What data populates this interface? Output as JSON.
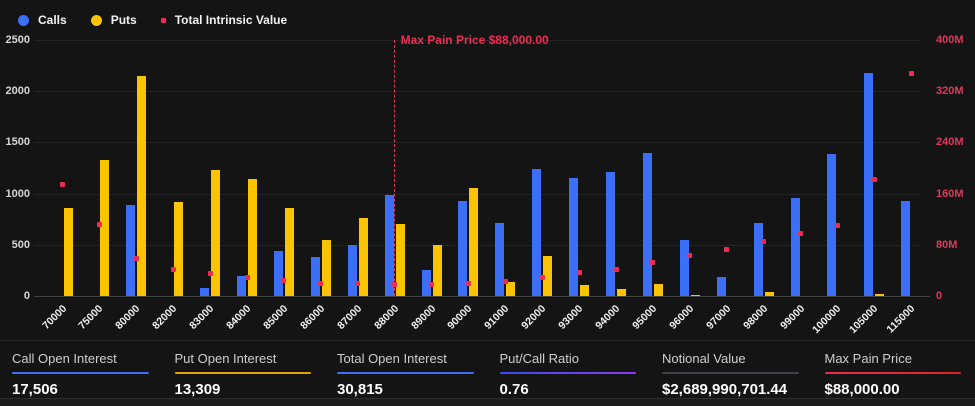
{
  "colors": {
    "background": "#141414",
    "calls": "#3c6ff7",
    "puts": "#fcc400",
    "intrinsic": "#ee2b57",
    "axis_pink": "#d93a5c",
    "max_pain_line": "#e8315b",
    "max_pain_text": "#ee2d55"
  },
  "legend": [
    {
      "label": "Calls",
      "marker": "circle",
      "color": "#3c6ff7"
    },
    {
      "label": "Puts",
      "marker": "circle",
      "color": "#fcc400"
    },
    {
      "label": "Total Intrinsic Value",
      "marker": "square",
      "color": "#ee2b57"
    }
  ],
  "chart_data": {
    "type": "bar",
    "categories": [
      "70000",
      "75000",
      "80000",
      "82000",
      "83000",
      "84000",
      "85000",
      "86000",
      "87000",
      "88000",
      "89000",
      "90000",
      "91000",
      "92000",
      "93000",
      "94000",
      "95000",
      "96000",
      "97000",
      "98000",
      "99000",
      "100000",
      "105000",
      "115000"
    ],
    "series": [
      {
        "name": "Calls",
        "type": "bar",
        "axis": "left",
        "color": "#3c6ff7",
        "values": [
          0,
          0,
          890,
          0,
          75,
          200,
          440,
          380,
          495,
          990,
          255,
          930,
          710,
          1240,
          1150,
          1210,
          1395,
          545,
          190,
          710,
          960,
          1385,
          2175,
          925
        ]
      },
      {
        "name": "Puts",
        "type": "bar",
        "axis": "left",
        "color": "#fcc400",
        "values": [
          860,
          1330,
          2150,
          920,
          1230,
          1140,
          860,
          545,
          765,
          705,
          500,
          1050,
          140,
          395,
          110,
          70,
          115,
          10,
          0,
          40,
          0,
          0,
          15,
          0
        ]
      },
      {
        "name": "Total Intrinsic Value",
        "type": "scatter",
        "axis": "right",
        "color": "#ee2b57",
        "values_millions": [
          175,
          112,
          58,
          41,
          35,
          29,
          24,
          20,
          19,
          18,
          18,
          19,
          22,
          29,
          36,
          42,
          52,
          64,
          73,
          85,
          97,
          110,
          182,
          347
        ]
      }
    ],
    "left_axis": {
      "ticks": [
        0,
        500,
        1000,
        1500,
        2000,
        2500
      ],
      "max": 2500
    },
    "right_axis": {
      "tick_labels": [
        "0",
        "80M",
        "160M",
        "240M",
        "320M",
        "400M"
      ],
      "tick_values_millions": [
        0,
        80,
        160,
        240,
        320,
        400
      ],
      "max_millions": 400
    },
    "annotation": {
      "label": "Max Pain Price $88,000.00",
      "category": "88000"
    },
    "grid": true,
    "legend_position": "top-left"
  },
  "stats": [
    {
      "label": "Call Open Interest",
      "value": "17,506",
      "underline": "#3c6ff7",
      "underline2": "#3c6ff7"
    },
    {
      "label": "Put Open Interest",
      "value": "13,309",
      "underline": "#e0a508",
      "underline2": "#e0a508"
    },
    {
      "label": "Total Open Interest",
      "value": "30,815",
      "underline": "#3c6ff7",
      "underline2": "#3c6ff7"
    },
    {
      "label": "Put/Call Ratio",
      "value": "0.76",
      "underline": "#3b4df0",
      "underline2": "#8a3bf0"
    },
    {
      "label": "Notional Value",
      "value": "$2,689,990,701.44",
      "underline": "#3e434b",
      "underline2": "#3e434b"
    },
    {
      "label": "Max Pain Price",
      "value": "$88,000.00",
      "underline": "#ef2a52",
      "underline2": "#e02424"
    }
  ]
}
